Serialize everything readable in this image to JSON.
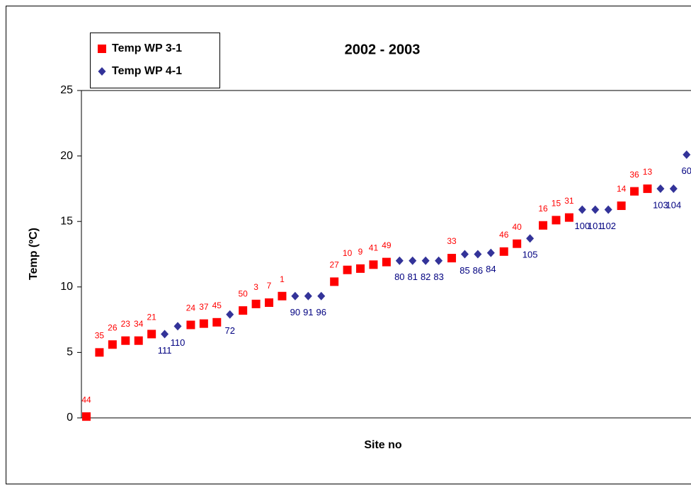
{
  "chart_data": {
    "type": "scatter",
    "title": "2002 - 2003",
    "x_label": "Site no",
    "y_label": "Temp (ºC)",
    "ylim": [
      0,
      25
    ],
    "yticks": [
      0,
      5,
      10,
      15,
      20,
      25
    ],
    "grid": false,
    "legend": "top-left",
    "categories": [
      null,
      null,
      null,
      null,
      null,
      null,
      null,
      null,
      null,
      null,
      null,
      null,
      null,
      null,
      null,
      null,
      null,
      null,
      null,
      null,
      null,
      null,
      null,
      null,
      null,
      null,
      null,
      null,
      null,
      null,
      null,
      null,
      null,
      null,
      null,
      null,
      null,
      null,
      null,
      null,
      null,
      null,
      null,
      null,
      null,
      null,
      null
    ],
    "series": [
      {
        "name": "Temp WP 3-1",
        "color": "#ff0000",
        "marker": "square",
        "label_color": "#ff0000",
        "values": [
          0.1,
          5.0,
          5.6,
          5.9,
          5.9,
          6.4,
          null,
          null,
          7.1,
          7.2,
          7.3,
          null,
          8.2,
          8.7,
          8.8,
          9.3,
          null,
          null,
          null,
          10.4,
          11.3,
          11.4,
          11.7,
          11.9,
          null,
          null,
          null,
          null,
          12.2,
          null,
          null,
          null,
          12.7,
          13.3,
          null,
          14.7,
          15.1,
          15.3,
          null,
          null,
          null,
          16.2,
          17.3,
          17.5,
          null,
          null,
          null
        ],
        "point_labels": [
          "44",
          "35",
          "26",
          "23",
          "34",
          "21",
          null,
          null,
          "24",
          "37",
          "45",
          null,
          "50",
          "3",
          "7",
          "1",
          null,
          null,
          null,
          "27",
          "10",
          "9",
          "41",
          "49",
          null,
          null,
          null,
          null,
          "33",
          null,
          null,
          null,
          "46",
          "40",
          null,
          "16",
          "15",
          "31",
          null,
          null,
          null,
          "14",
          "36",
          "13",
          null,
          null,
          null
        ]
      },
      {
        "name": "Temp WP 4-1",
        "color": "#333399",
        "marker": "diamond",
        "label_color": "#000080",
        "values": [
          null,
          null,
          null,
          null,
          null,
          null,
          6.4,
          7.0,
          null,
          null,
          null,
          7.9,
          null,
          null,
          null,
          null,
          9.3,
          9.3,
          9.3,
          null,
          null,
          null,
          null,
          null,
          12.0,
          12.0,
          12.0,
          12.0,
          null,
          12.5,
          12.5,
          12.6,
          null,
          null,
          13.7,
          null,
          null,
          null,
          15.9,
          15.9,
          15.9,
          null,
          null,
          null,
          17.5,
          17.5,
          20.1
        ],
        "point_labels": [
          null,
          null,
          null,
          null,
          null,
          null,
          "111",
          "110",
          null,
          null,
          null,
          "72",
          null,
          null,
          null,
          null,
          "90",
          "91",
          "96",
          null,
          null,
          null,
          null,
          null,
          "80",
          "81",
          "82",
          "83",
          null,
          "85",
          "86",
          "84",
          null,
          null,
          "105",
          null,
          null,
          null,
          "100",
          "101",
          "102",
          null,
          null,
          null,
          "103",
          "104",
          "60"
        ]
      }
    ]
  }
}
